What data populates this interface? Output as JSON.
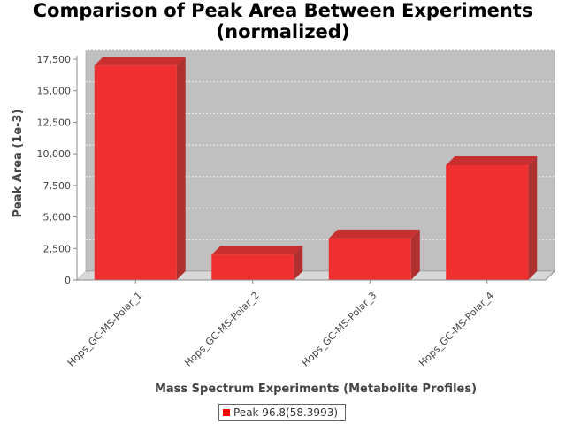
{
  "chart_data": {
    "type": "bar",
    "title_lines": [
      "Comparison of Peak Area Between Experiments",
      "(normalized)"
    ],
    "xlabel": "Mass Spectrum Experiments (Metabolite Profiles)",
    "ylabel": "Peak Area (1e-3)",
    "categories": [
      "Hops_GC-MS-Polar_1",
      "Hops_GC-MS-Polar_2",
      "Hops_GC-MS-Polar_3",
      "Hops_GC-MS-Polar_4"
    ],
    "series": [
      {
        "name": "Peak 96.8(58.3993)",
        "values": [
          17000,
          2000,
          3300,
          9100
        ]
      }
    ],
    "ylim": [
      0,
      17500
    ],
    "yticks": [
      0,
      2500,
      5000,
      7500,
      10000,
      12500,
      15000,
      17500
    ],
    "ytick_labels": [
      "0",
      "2,500",
      "5,000",
      "7,500",
      "10,000",
      "12,500",
      "15,000",
      "17,500"
    ],
    "grid": true,
    "legend_position": "bottom",
    "colors": {
      "bar": "#ff0000",
      "plot_background": "#c0c0c0"
    }
  }
}
